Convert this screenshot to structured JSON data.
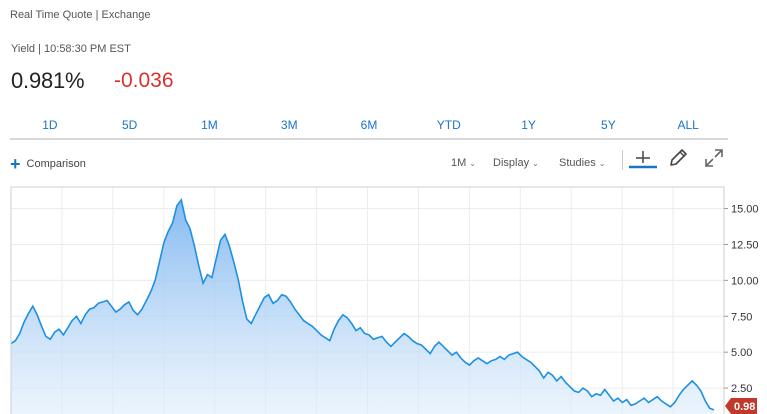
{
  "quote": {
    "source": "Real Time Quote | Exchange",
    "yield_label": "Yield | 10:58:30 PM EST",
    "last": "0.981%",
    "change": "-0.036"
  },
  "range_tabs": [
    "1D",
    "5D",
    "1M",
    "3M",
    "6M",
    "YTD",
    "1Y",
    "5Y",
    "ALL"
  ],
  "toolbar": {
    "comparison": "Comparison",
    "interval": "1M",
    "display": "Display",
    "studies": "Studies"
  },
  "colors": {
    "accent": "#1a73c8",
    "negative": "#d9322e",
    "line": "#1e90e0",
    "last_badge": "#c0392b"
  },
  "icons": [
    "plus-icon",
    "chevron-down-icon",
    "crosshair-icon",
    "pencil-icon",
    "expand-icon"
  ],
  "chart_data": {
    "type": "area",
    "y_ticks": [
      "15.00",
      "12.50",
      "10.00",
      "7.50",
      "5.00",
      "2.50"
    ],
    "ylim": [
      0,
      16.5
    ],
    "last_value_label": "0.98",
    "grid": true,
    "series": [
      {
        "values": [
          5.6,
          5.8,
          6.3,
          7.1,
          7.7,
          8.2,
          7.6,
          6.8,
          6.1,
          5.9,
          6.4,
          6.6,
          6.2,
          6.7,
          7.2,
          7.5,
          7.0,
          7.6,
          8.0,
          8.1,
          8.4,
          8.5,
          8.6,
          8.2,
          7.8,
          8.0,
          8.3,
          8.5,
          7.9,
          7.6,
          8.0,
          8.6,
          9.2,
          10.0,
          11.3,
          12.6,
          13.4,
          14.0,
          15.2,
          15.6,
          14.2,
          13.6,
          12.4,
          11.0,
          9.8,
          10.4,
          10.2,
          11.5,
          12.8,
          13.2,
          12.4,
          11.3,
          10.1,
          8.6,
          7.3,
          7.0,
          7.6,
          8.2,
          8.8,
          9.0,
          8.4,
          8.6,
          9.0,
          8.9,
          8.5,
          8.0,
          7.6,
          7.2,
          7.0,
          6.8,
          6.5,
          6.2,
          6.0,
          5.8,
          6.6,
          7.2,
          7.6,
          7.4,
          7.0,
          6.5,
          6.7,
          6.3,
          6.2,
          5.9,
          6.0,
          6.1,
          5.7,
          5.4,
          5.7,
          6.0,
          6.3,
          6.1,
          5.8,
          5.6,
          5.5,
          5.2,
          4.9,
          5.4,
          5.7,
          5.4,
          5.1,
          4.8,
          5.0,
          4.6,
          4.3,
          4.1,
          4.4,
          4.6,
          4.4,
          4.2,
          4.4,
          4.5,
          4.7,
          4.5,
          4.8,
          4.9,
          5.0,
          4.7,
          4.5,
          4.3,
          4.0,
          3.7,
          3.2,
          3.6,
          3.4,
          3.0,
          3.3,
          2.9,
          2.6,
          2.3,
          2.2,
          2.5,
          2.3,
          1.9,
          2.1,
          2.0,
          2.4,
          2.0,
          1.6,
          1.8,
          1.5,
          1.7,
          1.3,
          1.4,
          1.6,
          1.8,
          1.5,
          1.7,
          1.9,
          1.6,
          1.4,
          1.2,
          1.5,
          2.0,
          2.4,
          2.7,
          3.0,
          2.7,
          2.3,
          1.6,
          1.1,
          0.98
        ]
      }
    ]
  }
}
